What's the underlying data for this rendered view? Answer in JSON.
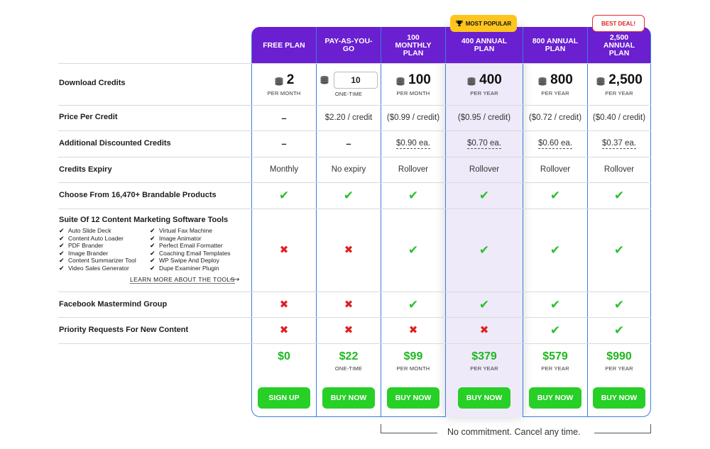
{
  "badges": {
    "most_popular": "MOST POPULAR",
    "best_deal": "BEST DEAL!"
  },
  "plans": [
    {
      "name": "FREE PLAN",
      "credits": "2",
      "credits_period": "PER MONTH",
      "price_per_credit": "–",
      "additional": "–",
      "expiry": "Monthly",
      "brandable": "check",
      "suite": "cross",
      "facebook": "cross",
      "priority": "cross",
      "price": "$0",
      "price_period": "",
      "button": "SIGN UP"
    },
    {
      "name": "PAY-AS-YOU-GO",
      "credits": "10",
      "credits_period": "ONE-TIME",
      "price_per_credit": "$2.20 / credit",
      "additional": "–",
      "expiry": "No expiry",
      "brandable": "check",
      "suite": "cross",
      "facebook": "cross",
      "priority": "cross",
      "price": "$22",
      "price_period": "ONE-TIME",
      "button": "BUY NOW"
    },
    {
      "name": "100 MONTHLY PLAN",
      "credits": "100",
      "credits_period": "PER MONTH",
      "price_per_credit": "($0.99 / credit)",
      "additional": "$0.90 ea.",
      "expiry": "Rollover",
      "brandable": "check",
      "suite": "check",
      "facebook": "check",
      "priority": "cross",
      "price": "$99",
      "price_period": "PER MONTH",
      "button": "BUY NOW"
    },
    {
      "name": "400 ANNUAL PLAN",
      "credits": "400",
      "credits_period": "PER YEAR",
      "price_per_credit": "($0.95 / credit)",
      "additional": "$0.70 ea.",
      "expiry": "Rollover",
      "brandable": "check",
      "suite": "check",
      "facebook": "check",
      "priority": "cross",
      "price": "$379",
      "price_period": "PER YEAR",
      "button": "BUY NOW"
    },
    {
      "name": "800 ANNUAL PLAN",
      "credits": "800",
      "credits_period": "PER YEAR",
      "price_per_credit": "($0.72 / credit)",
      "additional": "$0.60 ea.",
      "expiry": "Rollover",
      "brandable": "check",
      "suite": "check",
      "facebook": "check",
      "priority": "check",
      "price": "$579",
      "price_period": "PER YEAR",
      "button": "BUY NOW"
    },
    {
      "name": "2,500 ANNUAL PLAN",
      "credits": "2,500",
      "credits_period": "PER YEAR",
      "price_per_credit": "($0.40 / credit)",
      "additional": "$0.37 ea.",
      "expiry": "Rollover",
      "brandable": "check",
      "suite": "check",
      "facebook": "check",
      "priority": "check",
      "price": "$990",
      "price_period": "PER YEAR",
      "button": "BUY NOW"
    }
  ],
  "rows": {
    "download_credits": "Download Credits",
    "price_per_credit": "Price Per Credit",
    "additional": "Additional Discounted Credits",
    "expiry": "Credits Expiry",
    "brandable": "Choose From 16,470+ Brandable Products",
    "suite": "Suite Of 12 Content Marketing Software Tools",
    "facebook": "Facebook Mastermind Group",
    "priority": "Priority Requests For New Content"
  },
  "tools_left": [
    "Auto Slide Deck",
    "Content Auto Loader",
    "PDF Brander",
    "Image Brander",
    "Content Summarizer Tool",
    "Video Sales Generator"
  ],
  "tools_right": [
    "Virtual Fax Machine",
    "Image Animator",
    "Perfect Email Formatter",
    "Coaching Email Templates",
    "WP Swipe And Deploy",
    "Dupe Examiner Plugin"
  ],
  "learn_more": "LEARN MORE ABOUT THE TOOLS",
  "footer_note": "No commitment. Cancel any time.",
  "colors": {
    "header": "#6a1fd0",
    "button": "#27cf27",
    "price": "#1fb81f",
    "check": "#2bc12b",
    "cross": "#e02020",
    "popular": "#fdc51e",
    "border": "#3b7de0"
  }
}
